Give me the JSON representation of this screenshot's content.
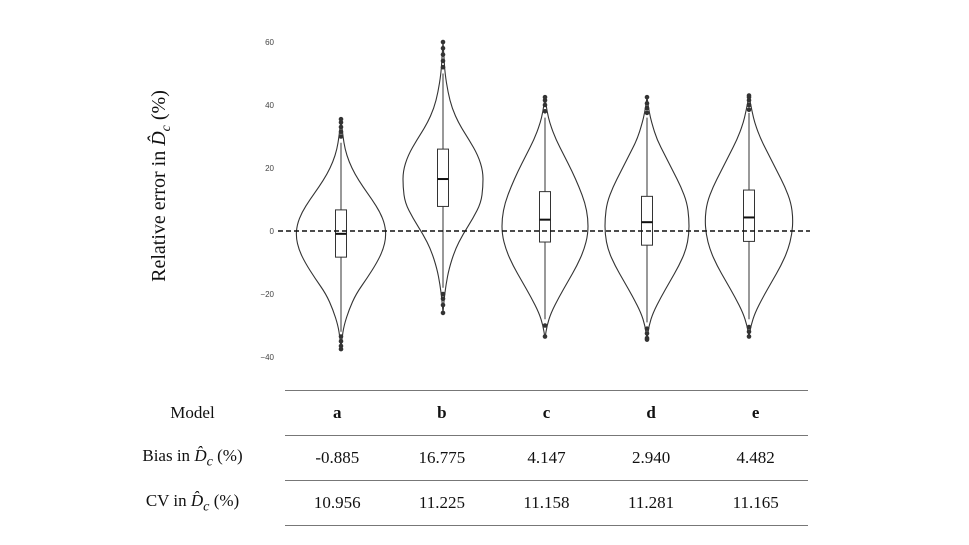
{
  "chart_data": {
    "type": "violin",
    "ylabel": "Relative error in D̂c (%)",
    "yticks": [
      60,
      40,
      20,
      0,
      -20,
      -40
    ],
    "ylim": [
      -41,
      62
    ],
    "reference_line": 0,
    "categories": [
      "a",
      "b",
      "c",
      "d",
      "e"
    ],
    "boxes": [
      {
        "name": "a",
        "q1": -8.3,
        "median": -0.9,
        "q3": 6.7,
        "whisker_low": -32.0,
        "whisker_high": 28.0,
        "outliers": [
          -33.5,
          -35.0,
          -36.5,
          -37.5,
          30.0,
          31.5,
          33.0,
          34.5,
          35.5
        ]
      },
      {
        "name": "b",
        "q1": 7.8,
        "median": 16.5,
        "q3": 26.0,
        "whisker_low": -18.0,
        "whisker_high": 50.0,
        "outliers": [
          -20.0,
          -21.5,
          -23.5,
          -26.0,
          52.0,
          54.0,
          56.0,
          58.0,
          60.0
        ]
      },
      {
        "name": "c",
        "q1": -3.5,
        "median": 3.6,
        "q3": 12.5,
        "whisker_low": -28.0,
        "whisker_high": 36.0,
        "outliers": [
          -30.0,
          -33.5,
          38.0,
          40.0,
          41.5,
          42.5
        ]
      },
      {
        "name": "d",
        "q1": -4.5,
        "median": 2.8,
        "q3": 11.0,
        "whisker_low": -29.0,
        "whisker_high": 36.0,
        "outliers": [
          -31.0,
          -32.5,
          -34.0,
          -34.5,
          37.5,
          39.0,
          40.5,
          42.5
        ]
      },
      {
        "name": "e",
        "q1": -3.3,
        "median": 4.3,
        "q3": 13.0,
        "whisker_low": -28.0,
        "whisker_high": 37.5,
        "outliers": [
          -30.5,
          -32.0,
          -33.5,
          38.5,
          40.0,
          41.5,
          42.5,
          43.0
        ]
      }
    ]
  },
  "table": {
    "header_label": "Model",
    "models": [
      "a",
      "b",
      "c",
      "d",
      "e"
    ],
    "bias": {
      "label_prefix": "Bias in ",
      "label_suffix": " (%)",
      "values": [
        "-0.885",
        "16.775",
        "4.147",
        "2.940",
        "4.482"
      ]
    },
    "cv": {
      "label_prefix": "CV in ",
      "label_suffix": " (%)",
      "values": [
        "10.956",
        "11.225",
        "11.158",
        "11.281",
        "11.165"
      ]
    }
  }
}
